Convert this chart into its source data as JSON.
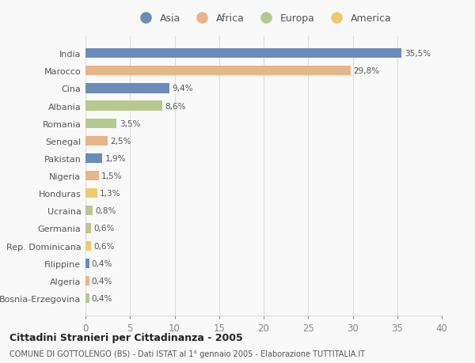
{
  "countries": [
    "Bosnia-Erzegovina",
    "Algeria",
    "Filippine",
    "Rep. Dominicana",
    "Germania",
    "Ucraina",
    "Honduras",
    "Nigeria",
    "Pakistan",
    "Senegal",
    "Romania",
    "Albania",
    "Cina",
    "Marocco",
    "India"
  ],
  "values": [
    0.4,
    0.4,
    0.4,
    0.6,
    0.6,
    0.8,
    1.3,
    1.5,
    1.9,
    2.5,
    3.5,
    8.6,
    9.4,
    29.8,
    35.5
  ],
  "labels": [
    "0,4%",
    "0,4%",
    "0,4%",
    "0,6%",
    "0,6%",
    "0,8%",
    "1,3%",
    "1,5%",
    "1,9%",
    "2,5%",
    "3,5%",
    "8,6%",
    "9,4%",
    "29,8%",
    "35,5%"
  ],
  "continents": [
    "Europa",
    "Africa",
    "Asia",
    "America",
    "Europa",
    "Europa",
    "America",
    "Africa",
    "Asia",
    "Africa",
    "Europa",
    "Europa",
    "Asia",
    "Africa",
    "Asia"
  ],
  "continent_colors": {
    "Asia": "#6b8cba",
    "Africa": "#e8b48a",
    "Europa": "#b5c98e",
    "America": "#f0c96e"
  },
  "legend_order": [
    "Asia",
    "Africa",
    "Europa",
    "America"
  ],
  "xlim": [
    0,
    40
  ],
  "xticks": [
    0,
    5,
    10,
    15,
    20,
    25,
    30,
    35,
    40
  ],
  "title": "Cittadini Stranieri per Cittadinanza - 2005",
  "subtitle": "COMUNE DI GOTTOLENGO (BS) - Dati ISTAT al 1° gennaio 2005 - Elaborazione TUTTITALIA.IT",
  "background_color": "#f9f9f9",
  "grid_color": "#dddddd",
  "bar_height": 0.55
}
